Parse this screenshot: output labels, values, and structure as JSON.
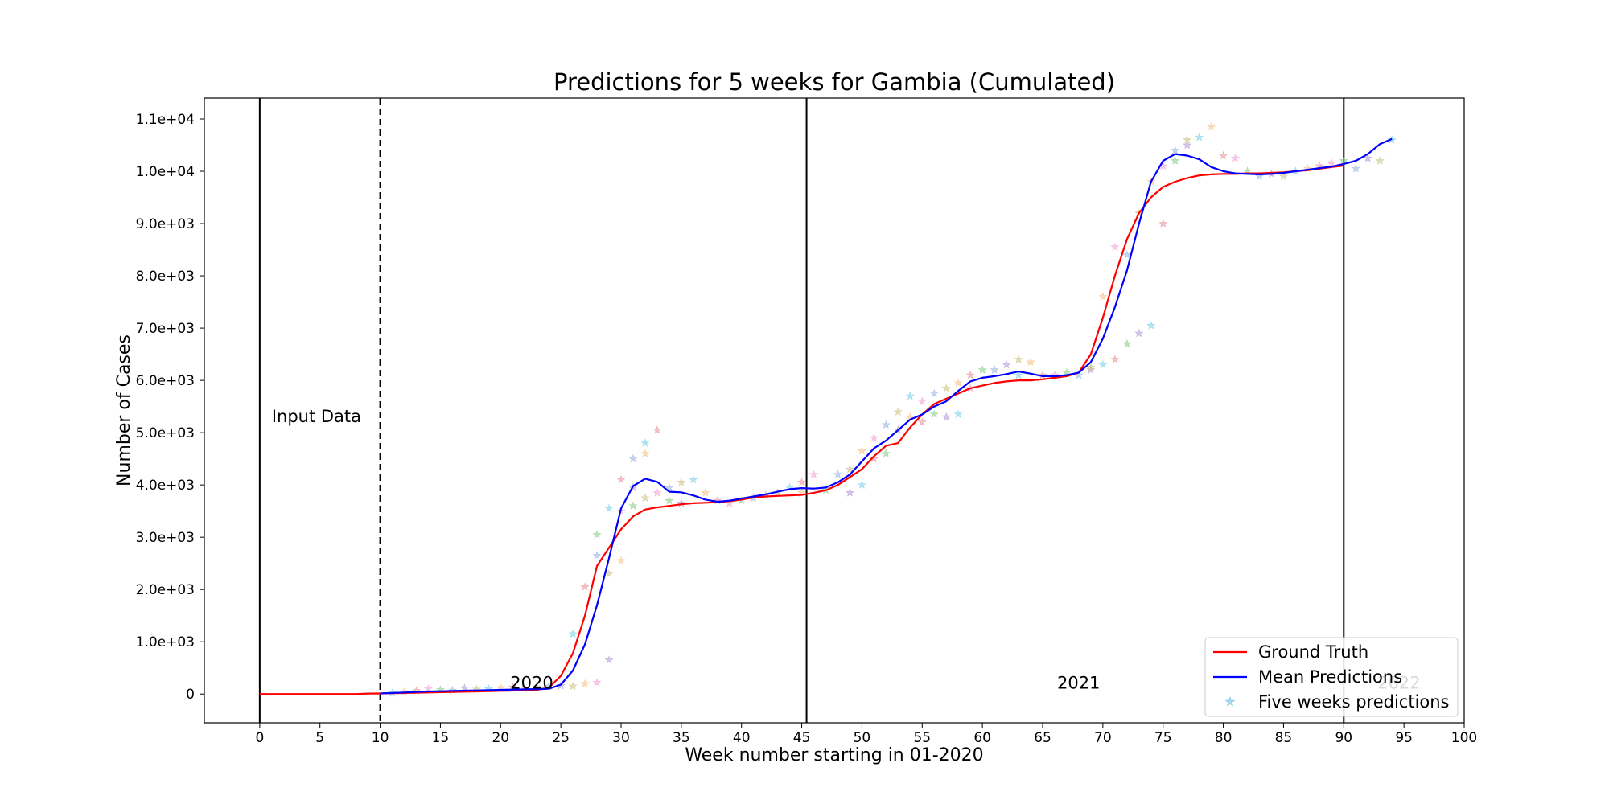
{
  "chart_data": {
    "type": "line",
    "title": "Predictions for 5 weeks for Gambia (Cumulated)",
    "xlabel": "Week number starting in 01-2020",
    "ylabel": "Number of Cases",
    "xlim": [
      -4.6,
      100
    ],
    "ylim": [
      -550,
      11400
    ],
    "x_ticks": [
      0,
      5,
      10,
      15,
      20,
      25,
      30,
      35,
      40,
      45,
      50,
      55,
      60,
      65,
      70,
      75,
      80,
      85,
      90,
      95,
      100
    ],
    "y_ticks": [
      0,
      1000,
      2000,
      3000,
      4000,
      5000,
      6000,
      7000,
      8000,
      9000,
      10000,
      11000
    ],
    "y_tick_labels": [
      "0",
      "1.0e+03",
      "2.0e+03",
      "3.0e+03",
      "4.0e+03",
      "5.0e+03",
      "6.0e+03",
      "7.0e+03",
      "8.0e+03",
      "9.0e+03",
      "1.0e+04",
      "1.1e+04"
    ],
    "grid": false,
    "legend_position": "bottom-right",
    "vertical_lines": [
      {
        "x": 0,
        "style": "solid"
      },
      {
        "x": 10,
        "style": "dashed"
      },
      {
        "x": 45.4,
        "style": "solid"
      },
      {
        "x": 90,
        "style": "solid"
      }
    ],
    "annotations": [
      {
        "text": "Input Data",
        "x": 1,
        "y": 5200,
        "color": "#000000"
      },
      {
        "text": "2020",
        "x": 20.8,
        "y": 100,
        "color": "#000000"
      },
      {
        "text": "2021",
        "x": 66.2,
        "y": 100,
        "color": "#000000"
      },
      {
        "text": "2022",
        "x": 92.8,
        "y": 100,
        "color": "#bbbbbb"
      }
    ],
    "series": [
      {
        "name": "Ground Truth",
        "color": "#ff0000",
        "style": "line",
        "x": [
          0,
          2,
          4,
          6,
          8,
          9,
          10,
          12,
          14,
          16,
          18,
          20,
          22,
          23,
          24,
          25,
          26,
          27,
          28,
          29,
          30,
          31,
          32,
          33,
          34,
          35,
          36,
          37,
          38,
          39,
          40,
          41,
          42,
          43,
          44,
          45,
          46,
          47,
          48,
          49,
          50,
          51,
          52,
          53,
          54,
          55,
          56,
          57,
          58,
          59,
          60,
          61,
          62,
          63,
          64,
          65,
          66,
          67,
          68,
          69,
          70,
          71,
          72,
          73,
          74,
          75,
          76,
          77,
          78,
          79,
          80,
          81,
          82,
          83,
          84,
          85,
          86,
          87,
          88,
          89,
          90
        ],
        "values": [
          0,
          0,
          0,
          0,
          0,
          10,
          12,
          20,
          30,
          40,
          50,
          60,
          70,
          80,
          120,
          350,
          780,
          1500,
          2450,
          2800,
          3150,
          3400,
          3530,
          3570,
          3600,
          3630,
          3650,
          3660,
          3670,
          3690,
          3720,
          3760,
          3780,
          3790,
          3800,
          3810,
          3850,
          3900,
          4000,
          4150,
          4300,
          4550,
          4750,
          4800,
          5100,
          5350,
          5550,
          5650,
          5750,
          5850,
          5900,
          5950,
          5980,
          6000,
          6000,
          6020,
          6050,
          6080,
          6150,
          6500,
          7200,
          8000,
          8700,
          9200,
          9500,
          9700,
          9800,
          9870,
          9920,
          9940,
          9950,
          9950,
          9960,
          9960,
          9970,
          9980,
          10000,
          10020,
          10050,
          10080,
          10110
        ]
      },
      {
        "name": "Mean Predictions",
        "color": "#0000ff",
        "style": "line",
        "x": [
          10,
          11,
          12,
          13,
          14,
          15,
          16,
          17,
          18,
          19,
          20,
          21,
          22,
          23,
          24,
          25,
          26,
          27,
          28,
          29,
          30,
          31,
          32,
          33,
          34,
          35,
          36,
          37,
          38,
          39,
          40,
          41,
          42,
          43,
          44,
          45,
          46,
          47,
          48,
          49,
          50,
          51,
          52,
          53,
          54,
          55,
          56,
          57,
          58,
          59,
          60,
          61,
          62,
          63,
          64,
          65,
          66,
          67,
          68,
          69,
          70,
          71,
          72,
          73,
          74,
          75,
          76,
          77,
          78,
          79,
          80,
          81,
          82,
          83,
          84,
          85,
          86,
          87,
          88,
          89,
          90,
          91,
          92,
          93,
          94
        ],
        "values": [
          12,
          20,
          30,
          40,
          50,
          55,
          60,
          65,
          70,
          75,
          80,
          85,
          90,
          95,
          100,
          180,
          450,
          950,
          1700,
          2600,
          3550,
          3980,
          4120,
          4060,
          3870,
          3860,
          3800,
          3720,
          3680,
          3700,
          3740,
          3780,
          3820,
          3870,
          3920,
          3940,
          3930,
          3950,
          4050,
          4200,
          4450,
          4700,
          4850,
          5050,
          5250,
          5350,
          5500,
          5600,
          5800,
          5980,
          6050,
          6080,
          6120,
          6170,
          6130,
          6080,
          6080,
          6100,
          6150,
          6350,
          6800,
          7400,
          8100,
          9000,
          9800,
          10200,
          10330,
          10300,
          10230,
          10080,
          10000,
          9960,
          9950,
          9940,
          9950,
          9970,
          10000,
          10030,
          10060,
          10090,
          10140,
          10200,
          10330,
          10520,
          10620
        ]
      },
      {
        "name": "Five weeks predictions",
        "color": "#7ec8e3",
        "style": "markers",
        "x": [
          11,
          12,
          13,
          14,
          15,
          16,
          17,
          18,
          19,
          20,
          21,
          22,
          23,
          24,
          25,
          26,
          26,
          27,
          27,
          28,
          28,
          28,
          29,
          29,
          29,
          30,
          30,
          30,
          31,
          31,
          31,
          32,
          32,
          32,
          33,
          33,
          34,
          34,
          35,
          35,
          36,
          37,
          38,
          39,
          40,
          41,
          42,
          43,
          44,
          45,
          45,
          46,
          47,
          48,
          49,
          49,
          50,
          50,
          51,
          51,
          52,
          52,
          53,
          53,
          54,
          54,
          55,
          55,
          56,
          56,
          57,
          57,
          58,
          58,
          59,
          59,
          60,
          61,
          62,
          63,
          63,
          64,
          65,
          66,
          67,
          68,
          69,
          69,
          70,
          70,
          71,
          71,
          72,
          72,
          73,
          73,
          74,
          74,
          75,
          75,
          76,
          76,
          77,
          77,
          78,
          79,
          80,
          81,
          82,
          83,
          84,
          85,
          86,
          87,
          88,
          89,
          90,
          91,
          92,
          93,
          94
        ],
        "values": [
          20,
          40,
          60,
          100,
          80,
          70,
          110,
          90,
          100,
          120,
          130,
          110,
          130,
          150,
          160,
          150,
          1150,
          200,
          2050,
          220,
          3050,
          2650,
          650,
          2300,
          3550,
          2550,
          4100,
          3500,
          3600,
          4500,
          3950,
          3750,
          4800,
          4600,
          5050,
          3850,
          3700,
          3950,
          3650,
          4050,
          4100,
          3850,
          3700,
          3650,
          3700,
          3750,
          3800,
          3850,
          3950,
          3850,
          4050,
          4200,
          3900,
          4200,
          3850,
          4300,
          4000,
          4650,
          4500,
          4900,
          4600,
          5150,
          5050,
          5400,
          5700,
          5300,
          5200,
          5600,
          5350,
          5750,
          5300,
          5850,
          5350,
          5950,
          6100,
          5850,
          6200,
          6200,
          6300,
          6400,
          6100,
          6350,
          6100,
          6100,
          6150,
          6100,
          6200,
          6250,
          6300,
          7600,
          6400,
          8550,
          6700,
          8400,
          6900,
          9200,
          7050,
          9800,
          9000,
          10100,
          10200,
          10400,
          10500,
          10600,
          10650,
          10850,
          10300,
          10250,
          10000,
          9900,
          9950,
          9900,
          10000,
          10050,
          10100,
          10150,
          10200,
          10050,
          10250,
          10200,
          10600
        ]
      }
    ]
  }
}
